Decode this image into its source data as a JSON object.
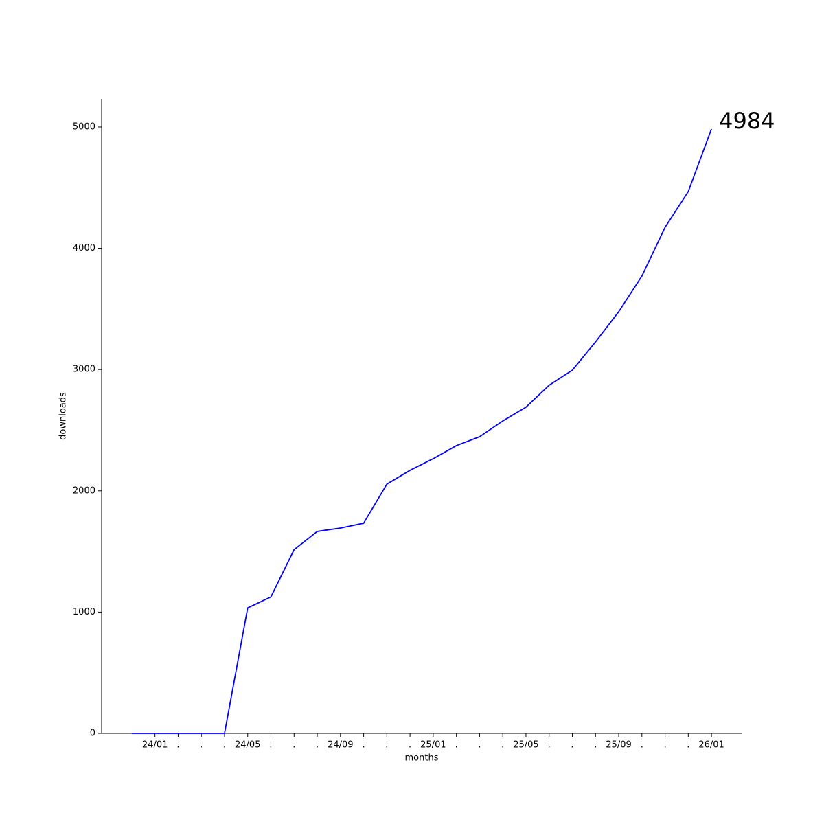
{
  "chart_data": {
    "type": "line",
    "x_label": "months",
    "y_label": "downloads",
    "categories": [
      null,
      "24/01",
      ".",
      ".",
      ".",
      "24/05",
      ".",
      ".",
      ".",
      "24/09",
      ".",
      ".",
      ".",
      "25/01",
      ".",
      ".",
      ".",
      "25/05",
      ".",
      ".",
      ".",
      "25/09",
      ".",
      ".",
      ".",
      "26/01"
    ],
    "values": [
      0,
      0,
      0,
      0,
      0,
      1035,
      1125,
      1515,
      1665,
      1693,
      1733,
      2055,
      2169,
      2265,
      2373,
      2446,
      2576,
      2690,
      2871,
      2995,
      3228,
      3477,
      3771,
      4173,
      4468,
      4984
    ],
    "color": "#0000ff",
    "ylim": [
      0,
      5232
    ],
    "yticks": [
      0,
      1000,
      2000,
      3000,
      4000,
      5000
    ],
    "grid": false
  }
}
